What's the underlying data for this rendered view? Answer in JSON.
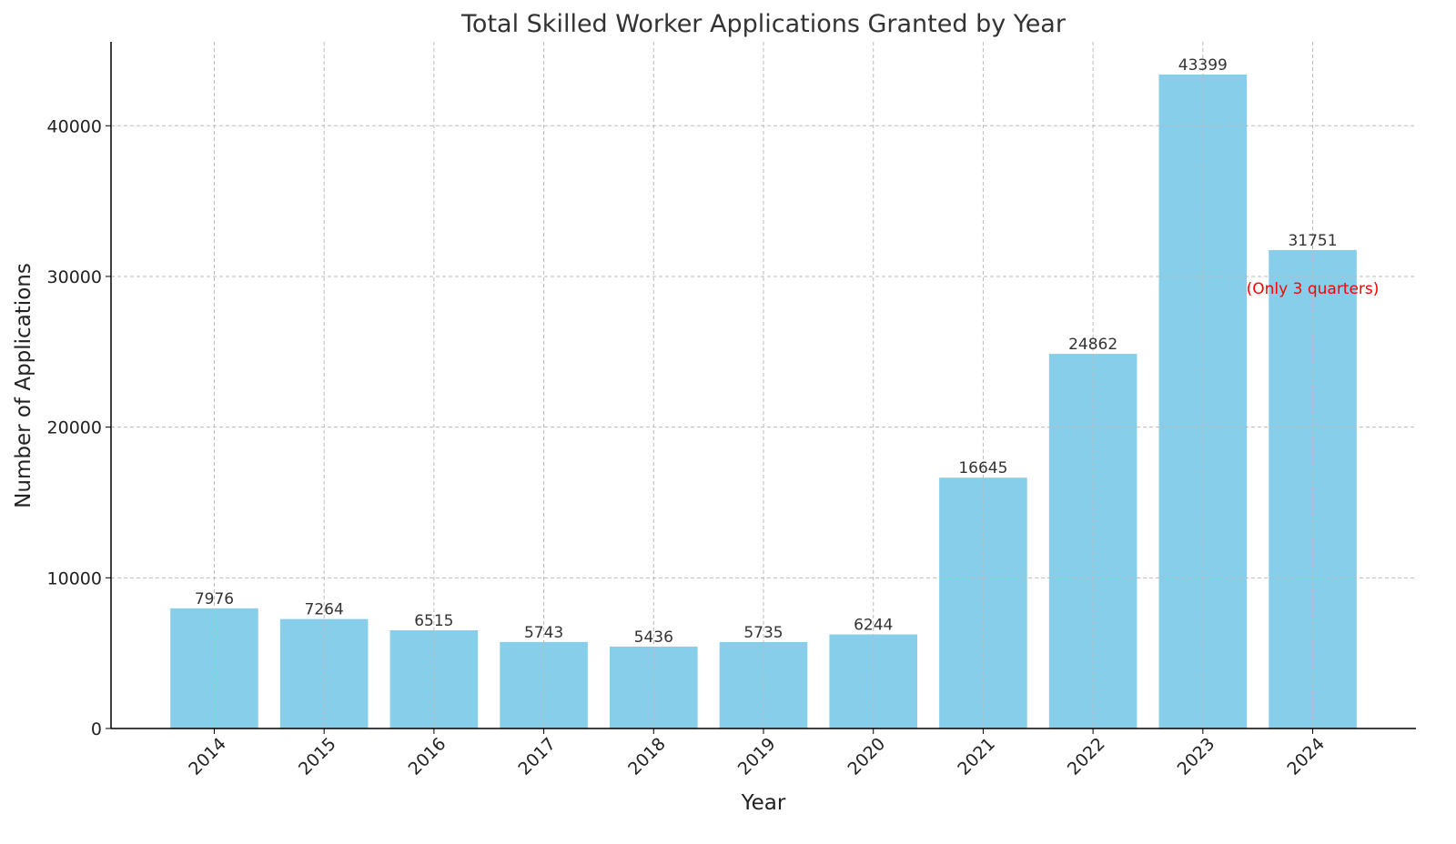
{
  "chart_data": {
    "type": "bar",
    "title": "Total Skilled Worker Applications Granted by Year",
    "xlabel": "Year",
    "ylabel": "Number of Applications",
    "categories": [
      "2014",
      "2015",
      "2016",
      "2017",
      "2018",
      "2019",
      "2020",
      "2021",
      "2022",
      "2023",
      "2024"
    ],
    "values": [
      7976,
      7264,
      6515,
      5743,
      5436,
      5735,
      6244,
      16645,
      24862,
      43399,
      31751
    ],
    "data_labels": [
      "7976",
      "7264",
      "6515",
      "5743",
      "5436",
      "5735",
      "6244",
      "16645",
      "24862",
      "43399",
      "31751"
    ],
    "ylim": [
      0,
      45569
    ],
    "yticks": [
      0,
      10000,
      20000,
      30000,
      40000
    ],
    "ytick_labels": [
      "0",
      "10000",
      "20000",
      "30000",
      "40000"
    ],
    "grid": true,
    "bar_color": "#87CEEB",
    "annotation": {
      "text": "(Only 3 quarters)",
      "category": "2024",
      "y": 29200,
      "color": "#ff0000"
    }
  }
}
